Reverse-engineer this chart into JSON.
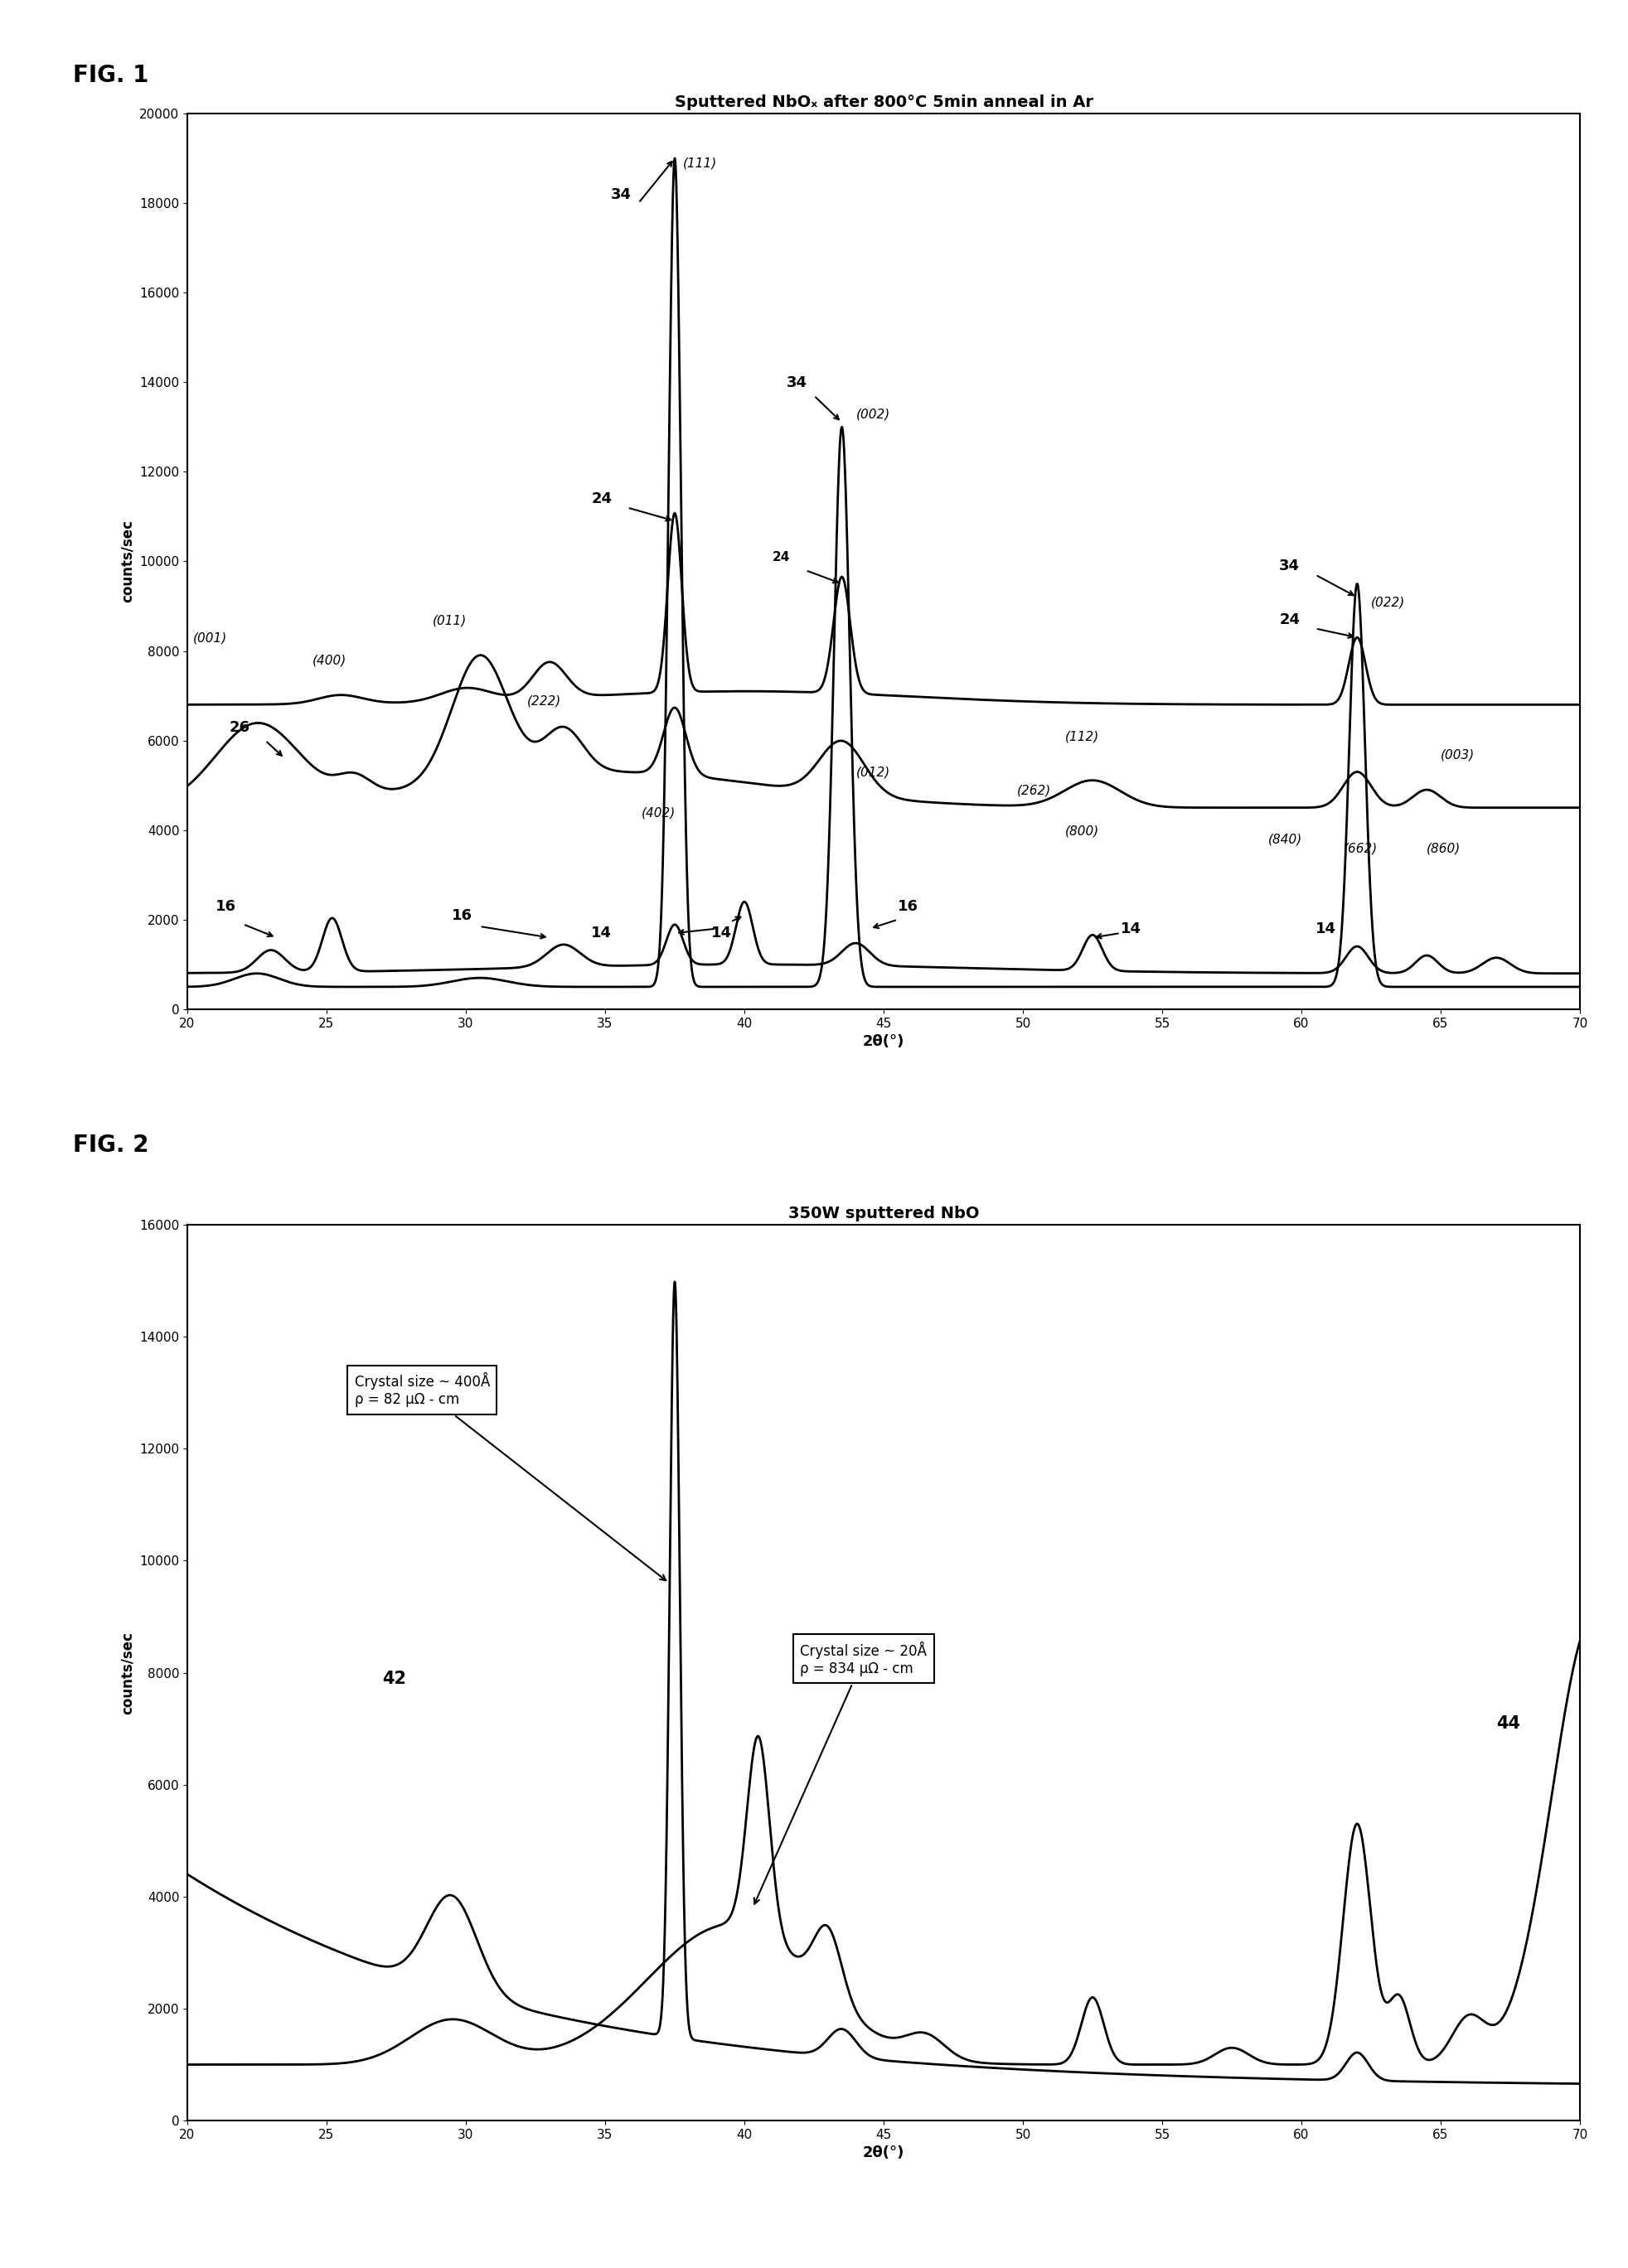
{
  "fig1_title": "Sputtered NbOₓ after 800°C 5min anneal in Ar",
  "fig2_title": "350W sputtered NbO",
  "fig1_ylabel": "counts/sec",
  "fig2_ylabel": "counts/sec",
  "xlabel": "2θ(°)",
  "fig1_ylim": [
    0,
    20000
  ],
  "fig2_ylim": [
    0,
    16000
  ],
  "xrange": [
    20,
    70
  ],
  "fig1_yticks": [
    0,
    2000,
    4000,
    6000,
    8000,
    10000,
    12000,
    14000,
    16000,
    18000,
    20000
  ],
  "fig2_yticks": [
    0,
    2000,
    4000,
    6000,
    8000,
    10000,
    12000,
    14000,
    16000
  ],
  "xticks": [
    20,
    25,
    30,
    35,
    40,
    45,
    50,
    55,
    60,
    65,
    70
  ],
  "fig1_label": "FIG. 1",
  "fig2_label": "FIG. 2",
  "ann1_text": "Crystal size ~ 400Å\nρ = 82 μΩ - cm",
  "ann2_text": "Crystal size ~ 20Å\nρ = 834 μΩ - cm"
}
